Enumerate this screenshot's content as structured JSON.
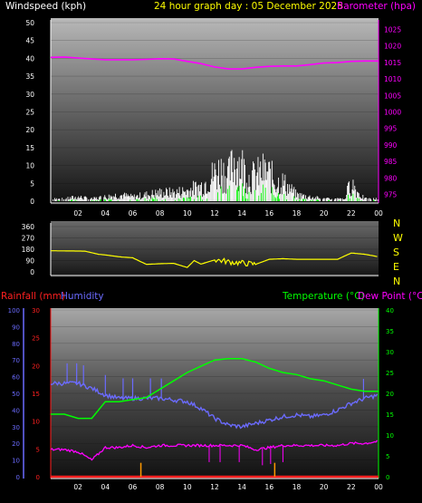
{
  "header": {
    "left": "Windspeed (kph)",
    "center": "24 hour graph day : 05 December 2025",
    "right": "Barometer (hpa)"
  },
  "wind_dir_letters": [
    "N",
    "W",
    "S",
    "E",
    "N"
  ],
  "bottom_header": {
    "rain": "Rainfall (mm)",
    "humidity": "Humidity",
    "temp": "Temperature (°C)",
    "dew": "Dew Point (°C)"
  },
  "colors": {
    "wind": "#ffffff",
    "gust_green": "#00ff00",
    "barometer": "#ff00ff",
    "direction": "#ffff00",
    "rain": "#ff2020",
    "humidity": "#6b6bff",
    "temperature": "#00ff00",
    "dewpoint": "#ff00ff",
    "rain_bar": "#ff9900"
  },
  "chart_data": [
    {
      "type": "line",
      "title": "24 hour graph day : 05 December 2025",
      "x_ticks": [
        "02",
        "04",
        "06",
        "08",
        "10",
        "12",
        "14",
        "16",
        "18",
        "20",
        "22",
        "00"
      ],
      "ylabel": "Windspeed (kph)",
      "y_ticks": [
        0,
        5,
        10,
        15,
        20,
        25,
        30,
        35,
        40,
        45,
        50
      ],
      "ylim": [
        0,
        50
      ],
      "y2label": "Barometer (hpa)",
      "y2_ticks": [
        975,
        980,
        985,
        990,
        995,
        1000,
        1005,
        1010,
        1015,
        1020,
        1025
      ],
      "y2lim": [
        973,
        1027
      ],
      "series": [
        {
          "name": "Barometer (hpa)",
          "color": "#ff00ff",
          "x": [
            0,
            1,
            2,
            3,
            4,
            5,
            6,
            7,
            8,
            9,
            10,
            11,
            12,
            13,
            14,
            15,
            16,
            17,
            18,
            19,
            20,
            21,
            22,
            23,
            24
          ],
          "values": [
            1016.5,
            1016.6,
            1016.3,
            1016.0,
            1015.8,
            1015.8,
            1015.8,
            1015.9,
            1016.1,
            1016.0,
            1015.3,
            1014.6,
            1013.6,
            1013.0,
            1013.0,
            1013.5,
            1013.8,
            1013.9,
            1013.9,
            1014.3,
            1014.8,
            1014.9,
            1015.3,
            1015.4,
            1015.4
          ]
        },
        {
          "name": "Windspeed (kph)",
          "color": "#ffffff",
          "x": [
            0,
            1,
            2,
            3,
            4,
            5,
            6,
            7,
            8,
            9,
            10,
            11,
            11.5,
            12,
            12.5,
            13,
            13.5,
            14,
            14.5,
            15,
            15.5,
            16,
            16.5,
            17,
            17.5,
            18,
            19,
            20,
            21,
            21.5,
            22,
            22.5,
            23,
            24
          ],
          "values": [
            1,
            1,
            2,
            1,
            2,
            3,
            2,
            3,
            4,
            4,
            5,
            7,
            10,
            13,
            15,
            12,
            20,
            17,
            11,
            12,
            14,
            13,
            9,
            9,
            6,
            3,
            2,
            1,
            1,
            1,
            9,
            4,
            1,
            1
          ]
        }
      ]
    },
    {
      "type": "line",
      "title": "",
      "x_ticks": [],
      "y_ticks": [
        0,
        90,
        180,
        270,
        360
      ],
      "ylim": [
        0,
        360
      ],
      "series": [
        {
          "name": "",
          "color": "#ffff00",
          "x": [
            0,
            2.5,
            3.5,
            4,
            5,
            6,
            7,
            8,
            9,
            10,
            10.5,
            11,
            12,
            12.5,
            13,
            14,
            15,
            16,
            17,
            18,
            19,
            20,
            21,
            22,
            23,
            24
          ],
          "values": [
            168,
            165,
            140,
            135,
            120,
            112,
            60,
            65,
            68,
            35,
            90,
            62,
            95,
            90,
            80,
            70,
            60,
            100,
            105,
            100,
            100,
            100,
            100,
            150,
            140,
            120
          ]
        }
      ]
    },
    {
      "type": "line",
      "title": "",
      "x_ticks": [
        "02",
        "04",
        "06",
        "08",
        "10",
        "12",
        "14",
        "16",
        "18",
        "20",
        "22",
        "00"
      ],
      "y_ticks_rain": [
        0,
        5,
        10,
        15,
        20,
        25,
        30
      ],
      "rain_lim": [
        0,
        30
      ],
      "y_ticks_humidity": [
        0,
        10,
        20,
        30,
        40,
        50,
        60,
        70,
        80,
        90,
        100
      ],
      "humidity_lim": [
        0,
        100
      ],
      "y2_ticks": [
        0,
        5,
        10,
        15,
        20,
        25,
        30,
        35,
        40
      ],
      "y2lim": [
        0,
        40
      ],
      "series": [
        {
          "name": "Humidity",
          "axis": "humidity",
          "color": "#6b6bff",
          "x": [
            0,
            1,
            2,
            3,
            4,
            5,
            6,
            7,
            8,
            9,
            10,
            11,
            12,
            13,
            14,
            15,
            16,
            17,
            18,
            19,
            20,
            21,
            22,
            23,
            24
          ],
          "values": [
            56,
            56,
            56,
            53,
            49,
            47,
            47,
            47,
            47,
            46,
            45,
            41,
            35,
            31,
            30,
            32,
            34,
            36,
            37,
            36,
            37,
            40,
            44,
            47,
            49
          ]
        },
        {
          "name": "Temperature (°C)",
          "axis": "right",
          "color": "#00ff00",
          "x": [
            0,
            1,
            2,
            3,
            4,
            5,
            6,
            7,
            8,
            9,
            10,
            11,
            12,
            13,
            14,
            15,
            16,
            17,
            18,
            19,
            20,
            21,
            22,
            23,
            24
          ],
          "values": [
            15,
            15,
            14,
            14,
            18,
            18,
            18.5,
            19,
            21,
            23,
            25,
            26.5,
            28,
            28.3,
            28.3,
            27.5,
            26,
            25,
            24.5,
            23.5,
            23,
            22,
            21,
            20.5,
            20.5
          ]
        },
        {
          "name": "Dew Point (°C)",
          "axis": "right",
          "color": "#ff00ff",
          "x": [
            0,
            1,
            2,
            3,
            4,
            5,
            6,
            7,
            8,
            9,
            10,
            11,
            12,
            13,
            14,
            15,
            16,
            17,
            18,
            19,
            20,
            21,
            22,
            23,
            24
          ],
          "values": [
            6.5,
            6.5,
            6,
            4,
            7,
            7,
            7.5,
            7,
            7.5,
            7.5,
            7.5,
            7.5,
            7.5,
            7.5,
            7.5,
            6.5,
            7,
            7.5,
            7.5,
            7.5,
            7.5,
            7.5,
            8,
            8,
            8.5
          ]
        },
        {
          "name": "Rainfall (mm)",
          "axis": "rain",
          "color": "#ff2020",
          "x": [
            0,
            24
          ],
          "values": [
            0,
            0
          ]
        }
      ]
    }
  ]
}
